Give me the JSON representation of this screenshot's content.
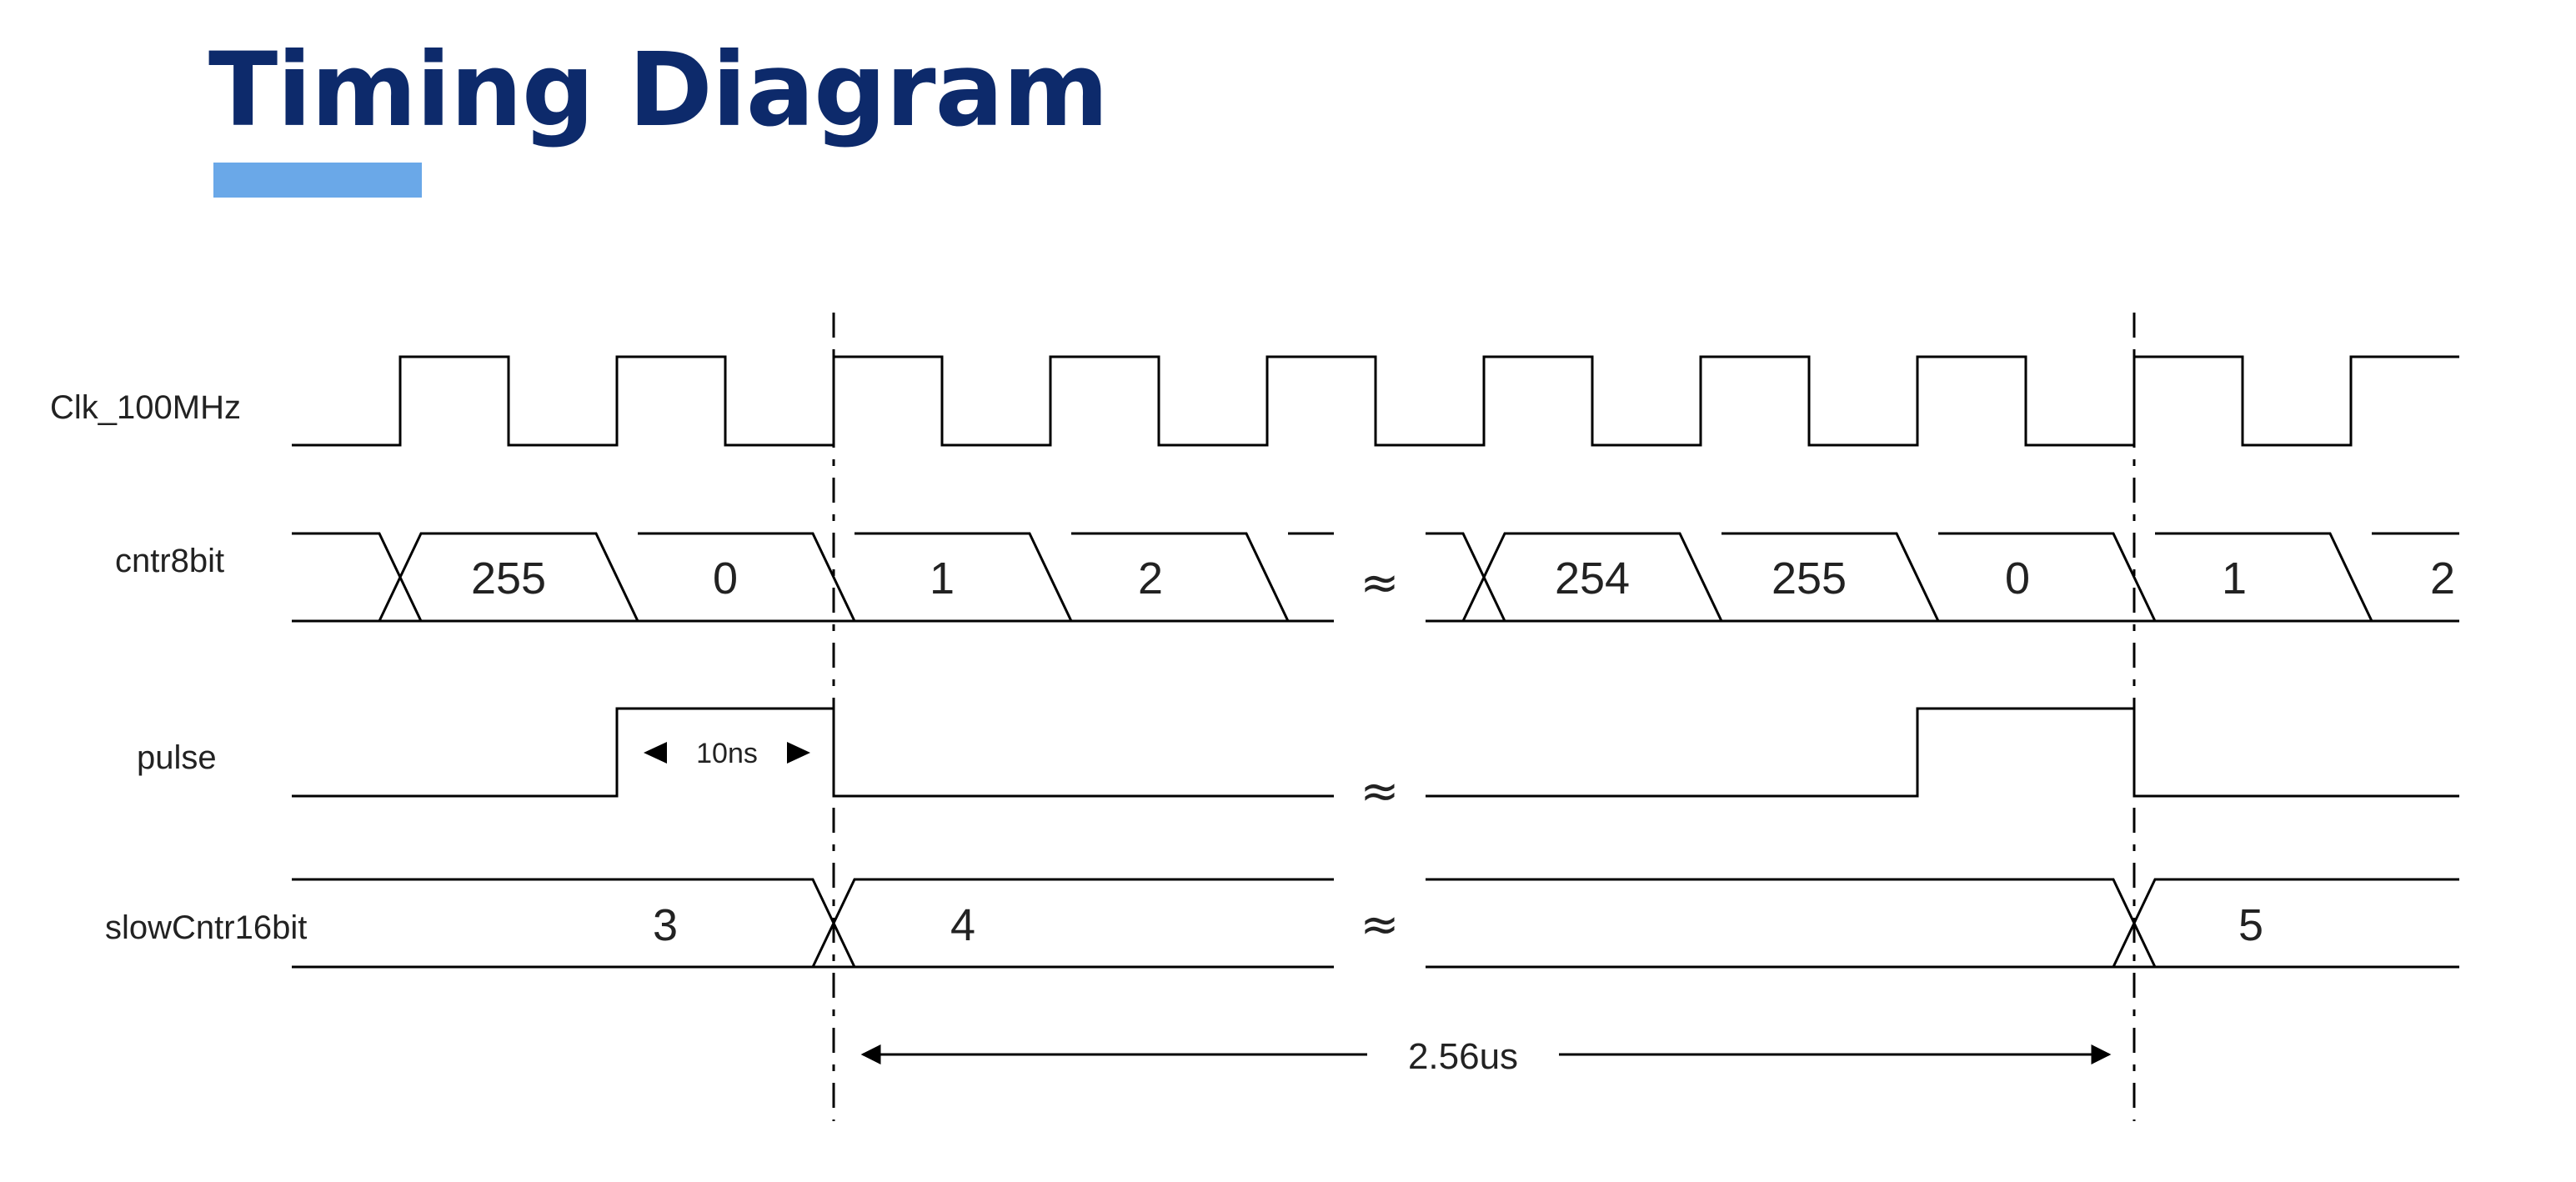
{
  "title": "Timing Diagram",
  "accent_color": "#6aa8e8",
  "title_color": "#0d2a6b",
  "signals": {
    "clk": {
      "label": "Clk_100MHz"
    },
    "cntr8bit": {
      "label": "cntr8bit",
      "values": [
        "255",
        "0",
        "1",
        "2",
        "254",
        "255",
        "0",
        "1",
        "2"
      ]
    },
    "pulse": {
      "label": "pulse"
    },
    "slowCntr16bit": {
      "label": "slowCntr16bit",
      "values": [
        "3",
        "4",
        "5"
      ]
    }
  },
  "annotations": {
    "pulse_width": "10ns",
    "period": "2.56us"
  },
  "break_symbol": "≈"
}
